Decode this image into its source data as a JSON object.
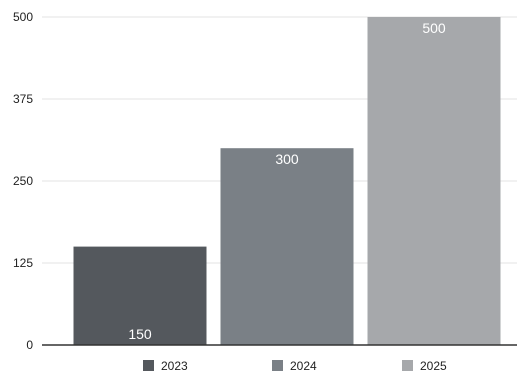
{
  "chart_data": {
    "type": "bar",
    "title": "",
    "xlabel": "",
    "ylabel": "",
    "categories": [
      "2023",
      "2024",
      "2025"
    ],
    "values": [
      150,
      300,
      500
    ],
    "data_labels": [
      "150",
      "300",
      "500"
    ],
    "ylim": [
      0,
      500
    ],
    "yticks": [
      0,
      125,
      250,
      375,
      500
    ],
    "ytick_labels": [
      "0",
      "125",
      "250",
      "375",
      "500"
    ],
    "grid": true,
    "legend": {
      "placement": "bottom",
      "entries": [
        "2023",
        "2024",
        "2025"
      ]
    },
    "colors": [
      "#54585d",
      "#7a8086",
      "#a6a8ab"
    ]
  }
}
